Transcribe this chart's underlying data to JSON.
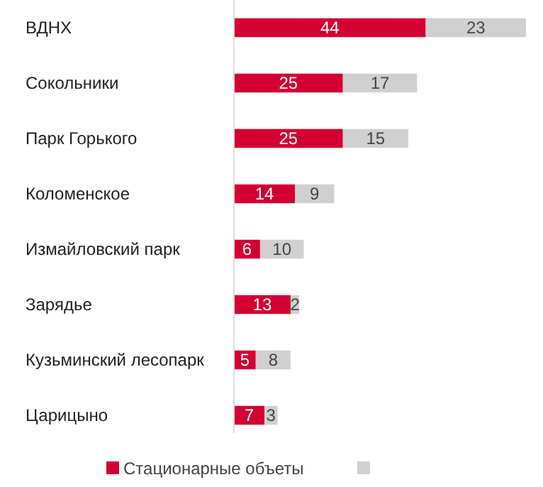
{
  "chart_data": {
    "type": "bar",
    "orientation": "horizontal",
    "stacked": true,
    "data_labels": true,
    "legend": "bottom",
    "categories": [
      "ВДНХ",
      "Сокольники",
      "Парк Горького",
      "Коломенское",
      "Измайловский парк",
      "Зарядье",
      "Кузьминский лесопарк",
      "Царицыно"
    ],
    "series": [
      {
        "name": "Стационарные объеты",
        "color": "#d50032",
        "values": [
          44,
          25,
          25,
          14,
          6,
          13,
          5,
          7
        ]
      },
      {
        "color": "#d0d0d0",
        "values": [
          23,
          17,
          15,
          9,
          10,
          2,
          8,
          3
        ]
      }
    ]
  }
}
